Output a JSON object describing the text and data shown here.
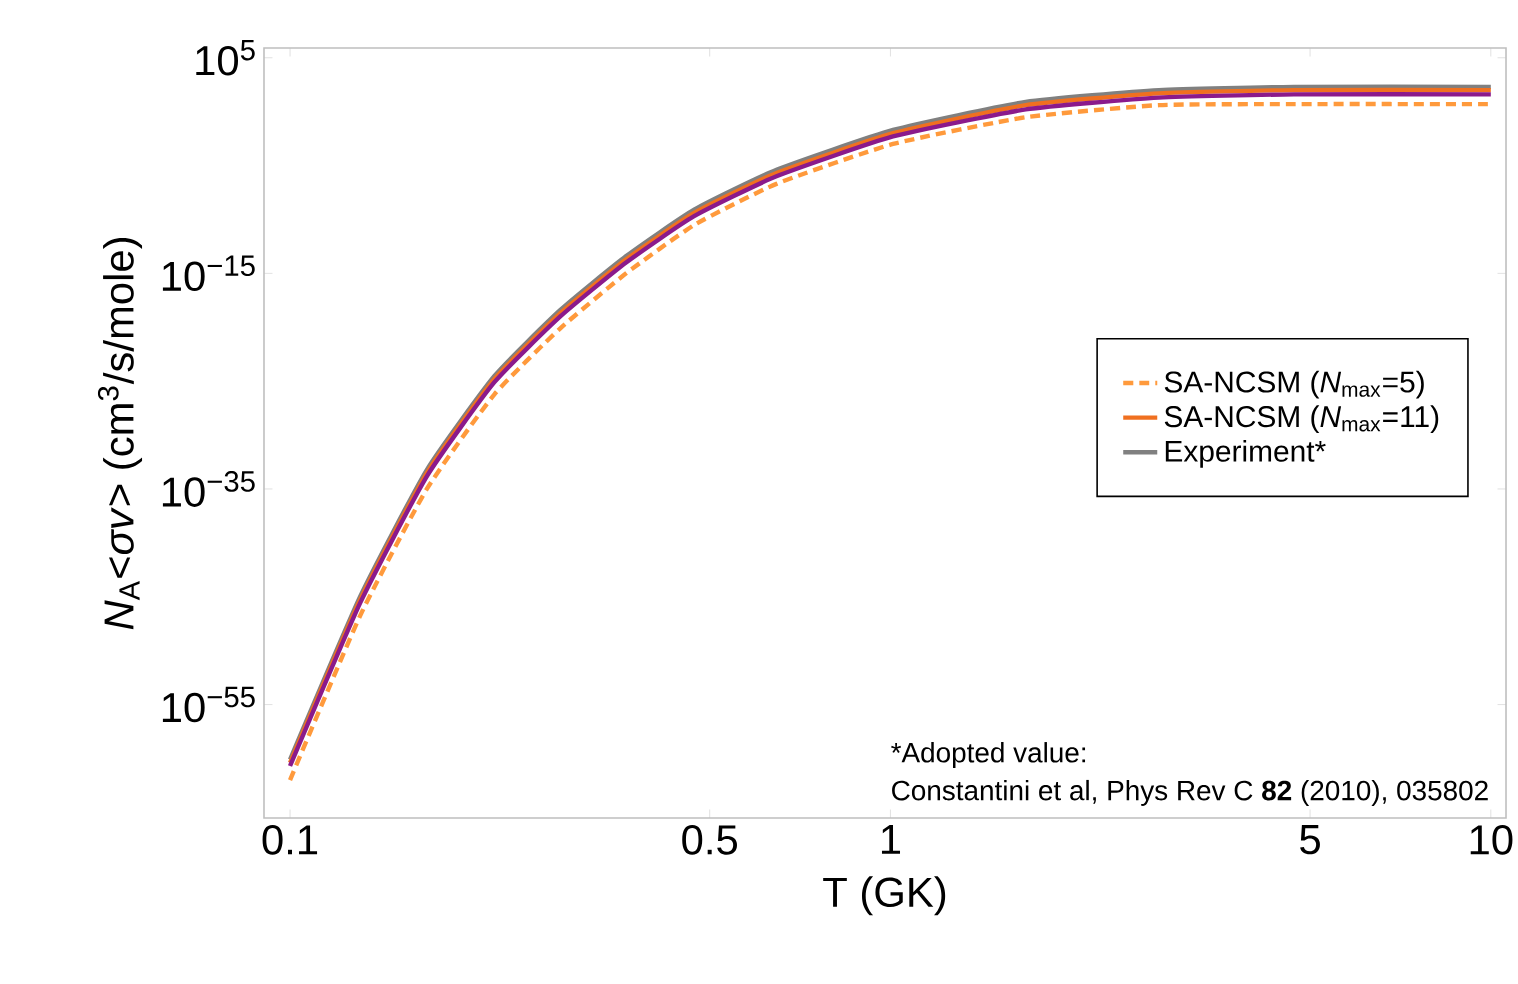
{
  "chart_data": {
    "type": "line",
    "xlabel": "T (GK)",
    "ylabel": "*N*$_{A}$<*σv*>  (cm$^{3}$/s/mole)",
    "log": "xy",
    "xlim": [
      0.0905,
      10.6
    ],
    "ylim": [
      3e-66,
      800000.0
    ],
    "xticks": [
      0.1,
      0.5,
      1,
      5,
      10
    ],
    "yticks": [
      {
        "value": 100000.0,
        "label": "10$^{5}$"
      },
      {
        "value": 1e-15,
        "label": "10$^{−15}$"
      },
      {
        "value": 1e-35,
        "label": "10$^{−35}$"
      },
      {
        "value": 1e-55,
        "label": "10$^{−55}$"
      }
    ],
    "x": [
      0.1,
      0.131,
      0.169,
      0.219,
      0.282,
      0.363,
      0.471,
      0.646,
      1.01,
      1.68,
      2.8,
      4.7,
      10
    ],
    "legend": "right",
    "series": [
      {
        "name": "Experiment*",
        "color": "#808080",
        "line_style": "solid",
        "values": [
          8e-61,
          1.2e-45,
          6e-34,
          3e-25,
          4e-19,
          4e-14,
          8e-10,
          4e-06,
          0.02,
          8,
          100.0,
          200.0,
          200.0
        ]
      },
      {
        "name": "SA-NCSM (*N*$_{max}$=11)",
        "color": "#f07020",
        "line_style": "solid",
        "values": [
          4e-61,
          6e-46,
          3e-34,
          1.6e-25,
          2e-19,
          2e-14,
          4e-10,
          2e-06,
          0.01,
          4,
          50.0,
          100.0,
          100.0
        ]
      },
      {
        "color": "#8b1a8b",
        "line_style": "solid",
        "values": [
          2e-61,
          3e-46,
          1.5e-34,
          8e-26,
          1e-19,
          1e-14,
          2e-10,
          1e-06,
          0.005,
          1.6,
          20.0,
          40.0,
          40.0
        ]
      },
      {
        "name": "SA-NCSM (*N*$_{max}$=5)",
        "color": "#ff9a3c",
        "line_style": "dashed",
        "values": [
          1e-62,
          2e-47,
          1e-35,
          6e-27,
          8e-21,
          1e-15,
          3e-11,
          2e-07,
          0.001,
          0.3,
          4,
          5,
          5
        ]
      }
    ],
    "annotations": [
      "*Adopted value:",
      "Constantini et al, Phys Rev C **82** (2010), 035802"
    ]
  }
}
